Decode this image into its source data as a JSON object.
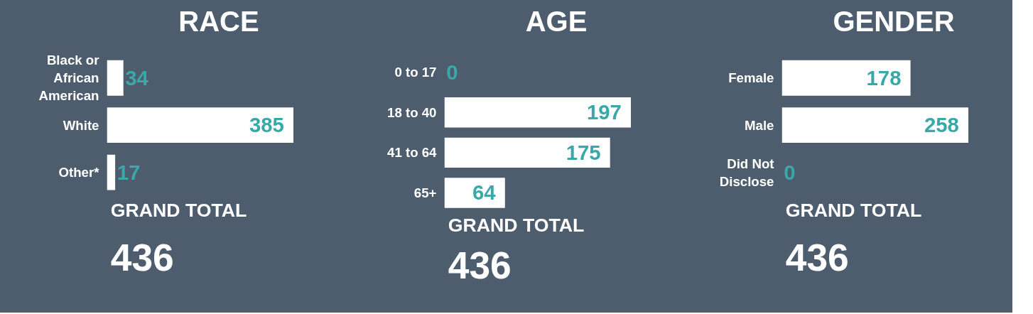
{
  "chart_data": [
    {
      "type": "bar",
      "orientation": "horizontal",
      "title": "RACE",
      "categories": [
        "Black or African American",
        "White",
        "Other*"
      ],
      "values": [
        34,
        385,
        17
      ],
      "color": "#ffffff",
      "data_labels": true,
      "tick_labels": "y",
      "annotations": [
        "GRAND TOTAL",
        "436"
      ]
    },
    {
      "type": "bar",
      "orientation": "horizontal",
      "title": "AGE",
      "categories": [
        "0 to 17",
        "18 to 40",
        "41 to 64",
        "65+"
      ],
      "values": [
        0,
        197,
        175,
        64
      ],
      "color": "#ffffff",
      "data_labels": true,
      "tick_labels": "y",
      "annotations": [
        "GRAND TOTAL",
        "436"
      ]
    },
    {
      "type": "bar",
      "orientation": "horizontal",
      "title": "GENDER",
      "categories": [
        "Female",
        "Male",
        "Did Not Disclose"
      ],
      "values": [
        178,
        258,
        0
      ],
      "color": "#ffffff",
      "data_labels": true,
      "tick_labels": "y",
      "annotations": [
        "GRAND TOTAL",
        "436"
      ]
    }
  ]
}
